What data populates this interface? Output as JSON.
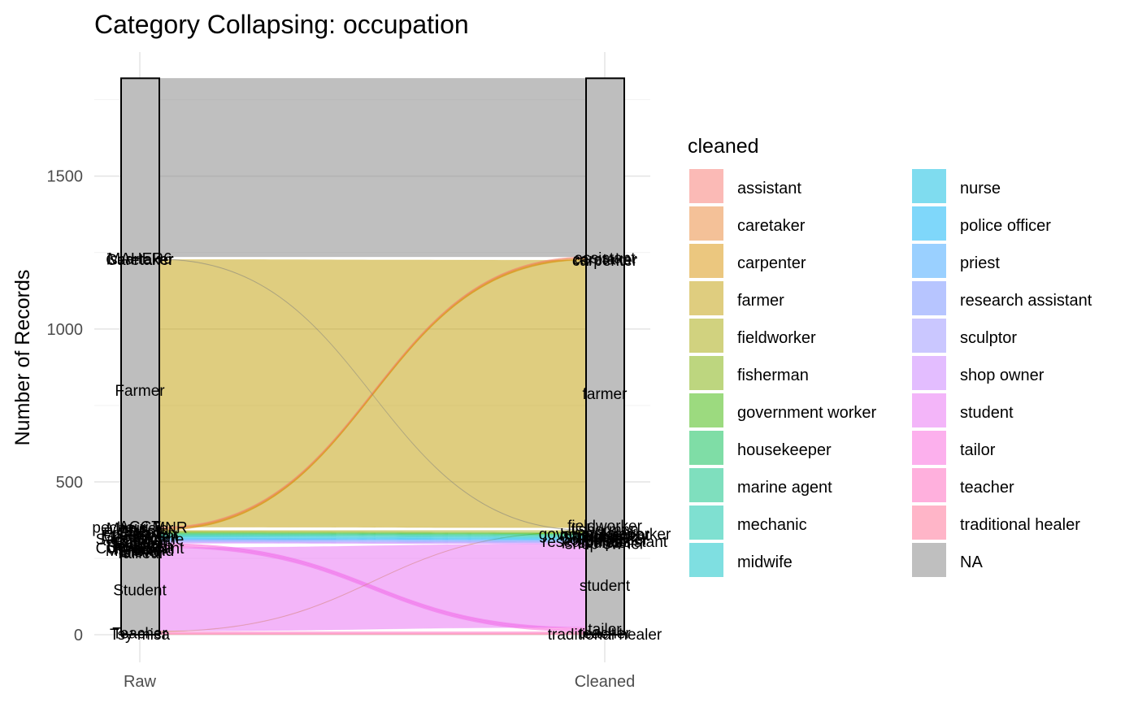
{
  "chart_data": {
    "type": "alluvial",
    "title": "Category Collapsing: occupation",
    "xlabel": "",
    "ylabel": "Number of Records",
    "ylim": [
      0,
      1820
    ],
    "yticks": [
      0,
      500,
      1000,
      1500
    ],
    "axes": [
      "Raw",
      "Cleaned"
    ],
    "grid": true,
    "legend": {
      "title": "cleaned",
      "placement": "right"
    },
    "categories": [
      {
        "name": "assistant",
        "color": "#F8766D"
      },
      {
        "name": "caretaker",
        "color": "#EA8331"
      },
      {
        "name": "carpenter",
        "color": "#D89000"
      },
      {
        "name": "farmer",
        "color": "#C09B00"
      },
      {
        "name": "fieldworker",
        "color": "#A3A500"
      },
      {
        "name": "fisherman",
        "color": "#7CAE00"
      },
      {
        "name": "government worker",
        "color": "#39B600"
      },
      {
        "name": "housekeeper",
        "color": "#00BB4E"
      },
      {
        "name": "marine agent",
        "color": "#00BF7D"
      },
      {
        "name": "mechanic",
        "color": "#00C1A3"
      },
      {
        "name": "midwife",
        "color": "#00BFC4"
      },
      {
        "name": "nurse",
        "color": "#00BAE0"
      },
      {
        "name": "police officer",
        "color": "#00B0F6"
      },
      {
        "name": "priest",
        "color": "#35A2FF"
      },
      {
        "name": "research assistant",
        "color": "#6F8CFF"
      },
      {
        "name": "sculptor",
        "color": "#9590FF"
      },
      {
        "name": "shop owner",
        "color": "#C77CFF"
      },
      {
        "name": "student",
        "color": "#E76BF3"
      },
      {
        "name": "tailor",
        "color": "#FA62DB"
      },
      {
        "name": "teacher",
        "color": "#FF62BC"
      },
      {
        "name": "traditional healer",
        "color": "#FF6C91"
      },
      {
        "name": "NA",
        "color": "#7F7F7F"
      }
    ],
    "flows": [
      {
        "cleaned": "traditional healer",
        "value": 4,
        "raw_y": [
          0,
          4
        ],
        "clean_y": [
          0,
          4
        ]
      },
      {
        "cleaned": "teacher",
        "value": 6,
        "raw_y": [
          4,
          10
        ],
        "clean_y": [
          4,
          10
        ]
      },
      {
        "cleaned": "tailor",
        "value": 5,
        "raw_y": [
          285,
          290
        ],
        "clean_y": [
          10,
          15
        ]
      },
      {
        "cleaned": "tailor",
        "value": 5,
        "raw_y": [
          290,
          295
        ],
        "clean_y": [
          15,
          20
        ]
      },
      {
        "cleaned": "tailor",
        "value": 4,
        "raw_y": [
          295,
          299
        ],
        "clean_y": [
          20,
          24
        ]
      },
      {
        "cleaned": "farmer",
        "value": 2,
        "raw_y": [
          10,
          12
        ],
        "clean_y": [
          336,
          338
        ]
      },
      {
        "cleaned": "student",
        "value": 273,
        "raw_y": [
          12,
          285
        ],
        "clean_y": [
          24,
          297
        ]
      },
      {
        "cleaned": "shop owner",
        "value": 4,
        "raw_y": [
          299,
          303
        ],
        "clean_y": [
          297,
          301
        ]
      },
      {
        "cleaned": "sculptor",
        "value": 3,
        "raw_y": [
          303,
          306
        ],
        "clean_y": [
          301,
          304
        ]
      },
      {
        "cleaned": "research assistant",
        "value": 4,
        "raw_y": [
          306,
          310
        ],
        "clean_y": [
          304,
          308
        ]
      },
      {
        "cleaned": "priest",
        "value": 3,
        "raw_y": [
          310,
          313
        ],
        "clean_y": [
          308,
          311
        ]
      },
      {
        "cleaned": "police officer",
        "value": 3,
        "raw_y": [
          313,
          316
        ],
        "clean_y": [
          311,
          314
        ]
      },
      {
        "cleaned": "nurse",
        "value": 4,
        "raw_y": [
          316,
          320
        ],
        "clean_y": [
          314,
          318
        ]
      },
      {
        "cleaned": "midwife",
        "value": 3,
        "raw_y": [
          320,
          323
        ],
        "clean_y": [
          318,
          321
        ]
      },
      {
        "cleaned": "mechanic",
        "value": 3,
        "raw_y": [
          323,
          326
        ],
        "clean_y": [
          321,
          324
        ]
      },
      {
        "cleaned": "marine agent",
        "value": 3,
        "raw_y": [
          326,
          329
        ],
        "clean_y": [
          324,
          327
        ]
      },
      {
        "cleaned": "housekeeper",
        "value": 3,
        "raw_y": [
          329,
          332
        ],
        "clean_y": [
          327,
          330
        ]
      },
      {
        "cleaned": "government worker",
        "value": 3,
        "raw_y": [
          332,
          335
        ],
        "clean_y": [
          330,
          333
        ]
      },
      {
        "cleaned": "fisherman",
        "value": 3,
        "raw_y": [
          335,
          338
        ],
        "clean_y": [
          333,
          336
        ]
      },
      {
        "cleaned": "fieldworker",
        "value": 3,
        "raw_y": [
          338,
          341
        ],
        "clean_y": [
          338,
          341
        ]
      },
      {
        "cleaned": "farmer",
        "value": 875,
        "raw_y": [
          352,
          1227
        ],
        "clean_y": [
          350,
          1225
        ]
      },
      {
        "cleaned": "carpenter",
        "value": 2,
        "raw_y": [
          341,
          343
        ],
        "clean_y": [
          1225,
          1227
        ]
      },
      {
        "cleaned": "carpenter",
        "value": 2,
        "raw_y": [
          343,
          345
        ],
        "clean_y": [
          1227,
          1229
        ]
      },
      {
        "cleaned": "caretaker",
        "value": 2,
        "raw_y": [
          345,
          347
        ],
        "clean_y": [
          1229,
          1231
        ]
      },
      {
        "cleaned": "caretaker",
        "value": 2,
        "raw_y": [
          347,
          349
        ],
        "clean_y": [
          1231,
          1233
        ]
      },
      {
        "cleaned": "assistant",
        "value": 3,
        "raw_y": [
          349,
          352
        ],
        "clean_y": [
          1233,
          1236
        ]
      },
      {
        "cleaned": "NA",
        "value": 2,
        "raw_y": [
          1227,
          1229
        ],
        "clean_y": [
          341,
          343
        ]
      },
      {
        "cleaned": "NA",
        "value": 584,
        "raw_y": [
          1236,
          1820
        ],
        "clean_y": [
          1236,
          1820
        ]
      }
    ],
    "raw_strata_labels": [
      {
        "text": "Farmer",
        "y": 800
      },
      {
        "text": "Student",
        "y": 148
      },
      {
        "text": "iscartaker",
        "y": 1230
      },
      {
        "text": "Caretaker",
        "y": 1228
      },
      {
        "text": "MAHER6",
        "y": 1232
      },
      {
        "text": "CSB-1",
        "y": 338
      },
      {
        "text": "ACCT",
        "y": 355
      },
      {
        "text": "Menuisier",
        "y": 350
      },
      {
        "text": "pecheur MNR",
        "y": 352
      },
      {
        "text": "Agent",
        "y": 340
      },
      {
        "text": "Fishermen",
        "y": 333
      },
      {
        "text": "Enseignant",
        "y": 326
      },
      {
        "text": "Mecanicien",
        "y": 320
      },
      {
        "text": "Sage-femme",
        "y": 314
      },
      {
        "text": "Infirmier",
        "y": 308
      },
      {
        "text": "Policier",
        "y": 302
      },
      {
        "text": "Pretre",
        "y": 298
      },
      {
        "text": "Research",
        "y": 293
      },
      {
        "text": "Sculpteur",
        "y": 288
      },
      {
        "text": "Commercant",
        "y": 284
      },
      {
        "text": "Fermier",
        "y": 280
      },
      {
        "text": "Marchand",
        "y": 276
      },
      {
        "text": "Eleve",
        "y": 272
      },
      {
        "text": "Tailleur",
        "y": 268
      },
      {
        "text": "Teacher",
        "y": 7
      },
      {
        "text": "Tsy misa",
        "y": 2
      }
    ],
    "clean_strata_labels": [
      {
        "text": "farmer",
        "y": 790
      },
      {
        "text": "student",
        "y": 162
      },
      {
        "text": "assistant",
        "y": 1234
      },
      {
        "text": "caretaker",
        "y": 1230
      },
      {
        "text": "carpenter",
        "y": 1226
      },
      {
        "text": "fieldworker",
        "y": 358
      },
      {
        "text": "fisherman",
        "y": 345
      },
      {
        "text": "government worker",
        "y": 331
      },
      {
        "text": "housekeeper",
        "y": 329
      },
      {
        "text": "marine agent",
        "y": 326
      },
      {
        "text": "mechanic",
        "y": 323
      },
      {
        "text": "midwife",
        "y": 320
      },
      {
        "text": "nurse",
        "y": 316
      },
      {
        "text": "police officer",
        "y": 312
      },
      {
        "text": "priest",
        "y": 309
      },
      {
        "text": "research assistant",
        "y": 306
      },
      {
        "text": "sculptor",
        "y": 303
      },
      {
        "text": "shop owner",
        "y": 299
      },
      {
        "text": "tailor",
        "y": 20
      },
      {
        "text": "teacher",
        "y": 7
      },
      {
        "text": "traditional healer",
        "y": 2
      }
    ]
  }
}
